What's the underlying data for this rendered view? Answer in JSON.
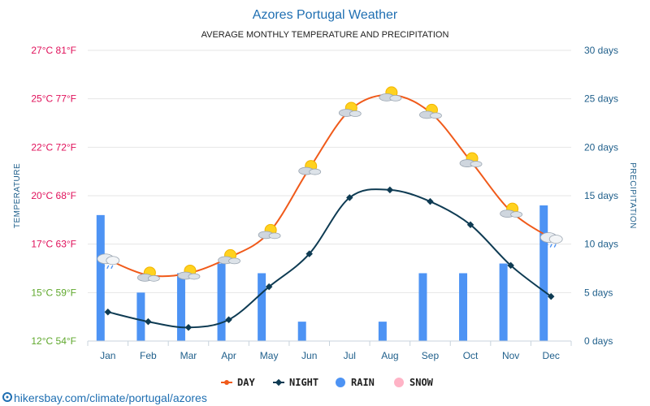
{
  "footer": "hikersbay.com/climate/portugal/azores",
  "colors": {
    "day": "#f05a1a",
    "night": "#0e3b53",
    "rain": "#4d93f4",
    "snow": "#ffb3c6",
    "warm_tick": "#e0105a",
    "cool_tick": "#5fa82c"
  },
  "chart_data": {
    "type": "line",
    "title": "Azores Portugal Weather",
    "subtitle": "AVERAGE MONTHLY TEMPERATURE AND PRECIPITATION",
    "ylabel_left": "TEMPERATURE",
    "ylabel_right": "PRECIPITATION",
    "categories": [
      "Jan",
      "Feb",
      "Mar",
      "Apr",
      "May",
      "Jun",
      "Jul",
      "Aug",
      "Sep",
      "Oct",
      "Nov",
      "Dec"
    ],
    "left_axis": {
      "ylim": [
        12,
        27
      ],
      "ticks": [
        {
          "value": 27,
          "label": "27°C 81°F",
          "tone": "warm"
        },
        {
          "value": 24.5,
          "label": "25°C 77°F",
          "tone": "warm"
        },
        {
          "value": 22,
          "label": "22°C 72°F",
          "tone": "warm"
        },
        {
          "value": 19.5,
          "label": "20°C 68°F",
          "tone": "warm"
        },
        {
          "value": 17,
          "label": "17°C 63°F",
          "tone": "warm"
        },
        {
          "value": 14.5,
          "label": "15°C 59°F",
          "tone": "cool"
        },
        {
          "value": 12,
          "label": "12°C 54°F",
          "tone": "cool"
        }
      ]
    },
    "right_axis": {
      "ylim": [
        0,
        30
      ],
      "ticks": [
        {
          "value": 30,
          "label": "30 days"
        },
        {
          "value": 25,
          "label": "25 days"
        },
        {
          "value": 20,
          "label": "20 days"
        },
        {
          "value": 15,
          "label": "15 days"
        },
        {
          "value": 10,
          "label": "10 days"
        },
        {
          "value": 5,
          "label": "5 days"
        },
        {
          "value": 0,
          "label": "0 days"
        }
      ]
    },
    "series": [
      {
        "name": "DAY",
        "key": "day",
        "values": [
          16.2,
          15.4,
          15.5,
          16.3,
          17.6,
          20.9,
          23.9,
          24.7,
          23.8,
          21.3,
          18.7,
          17.3
        ]
      },
      {
        "name": "NIGHT",
        "key": "night",
        "values": [
          13.5,
          13.0,
          12.7,
          13.1,
          14.8,
          16.5,
          19.4,
          19.8,
          19.2,
          18.0,
          15.9,
          14.3
        ]
      },
      {
        "name": "RAIN",
        "key": "rain",
        "type": "bar",
        "values": [
          13,
          5,
          7,
          8,
          7,
          2,
          0,
          2,
          7,
          7,
          8,
          14
        ]
      },
      {
        "name": "SNOW",
        "key": "snow",
        "type": "bar",
        "values": [
          0,
          0,
          0,
          0,
          0,
          0,
          0,
          0,
          0,
          0,
          0,
          0
        ]
      }
    ],
    "icons": [
      "rain-cloud-icon",
      "sun-cloud-icon",
      "sun-cloud-icon",
      "sun-cloud-icon",
      "sun-cloud-icon",
      "sun-cloud-icon",
      "sun-cloud-icon",
      "sun-cloud-icon",
      "sun-cloud-icon",
      "sun-cloud-icon",
      "sun-cloud-icon",
      "rain-cloud-icon"
    ],
    "legend": [
      {
        "label": "DAY",
        "key": "day"
      },
      {
        "label": "NIGHT",
        "key": "night"
      },
      {
        "label": "RAIN",
        "key": "rain"
      },
      {
        "label": "SNOW",
        "key": "snow"
      }
    ]
  }
}
